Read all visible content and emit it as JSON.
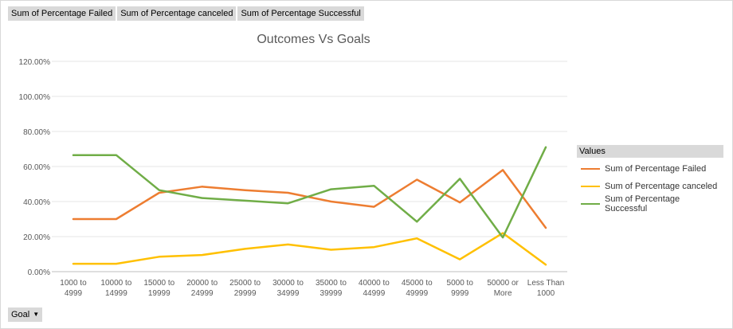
{
  "field_buttons": [
    "Sum of Percentage Failed",
    "Sum of Percentage canceled",
    "Sum of Percentage Successful"
  ],
  "goal_button": {
    "label": "Goal",
    "icon": "dropdown-arrow-icon"
  },
  "legend": {
    "title": "Values"
  },
  "chart_data": {
    "type": "line",
    "title": "Outcomes Vs Goals",
    "xlabel": "",
    "ylabel": "",
    "ylim": [
      0,
      1.2
    ],
    "yticks": [
      "0.00%",
      "20.00%",
      "40.00%",
      "60.00%",
      "80.00%",
      "100.00%",
      "120.00%"
    ],
    "grid": true,
    "legend_position": "right",
    "categories": [
      [
        "1000 to",
        "4999"
      ],
      [
        "10000 to",
        "14999"
      ],
      [
        "15000 to",
        "19999"
      ],
      [
        "20000 to",
        "24999"
      ],
      [
        "25000 to",
        "29999"
      ],
      [
        "30000 to",
        "34999"
      ],
      [
        "35000 to",
        "39999"
      ],
      [
        "40000 to",
        "44999"
      ],
      [
        "45000 to",
        "49999"
      ],
      [
        "5000 to",
        "9999"
      ],
      [
        "50000 or",
        "More"
      ],
      [
        "Less Than",
        "1000"
      ]
    ],
    "series": [
      {
        "name": "Sum of Percentage Failed",
        "color": "#ed7d31",
        "values": [
          0.3,
          0.3,
          0.45,
          0.485,
          0.465,
          0.45,
          0.4,
          0.37,
          0.525,
          0.395,
          0.58,
          0.25
        ]
      },
      {
        "name": "Sum of Percentage canceled",
        "color": "#ffc000",
        "values": [
          0.045,
          0.045,
          0.085,
          0.095,
          0.13,
          0.155,
          0.125,
          0.14,
          0.19,
          0.07,
          0.22,
          0.04
        ]
      },
      {
        "name": "Sum of Percentage Successful",
        "color": "#70ad47",
        "values": [
          0.665,
          0.665,
          0.465,
          0.42,
          0.405,
          0.39,
          0.47,
          0.49,
          0.285,
          0.53,
          0.195,
          0.71
        ]
      }
    ]
  }
}
